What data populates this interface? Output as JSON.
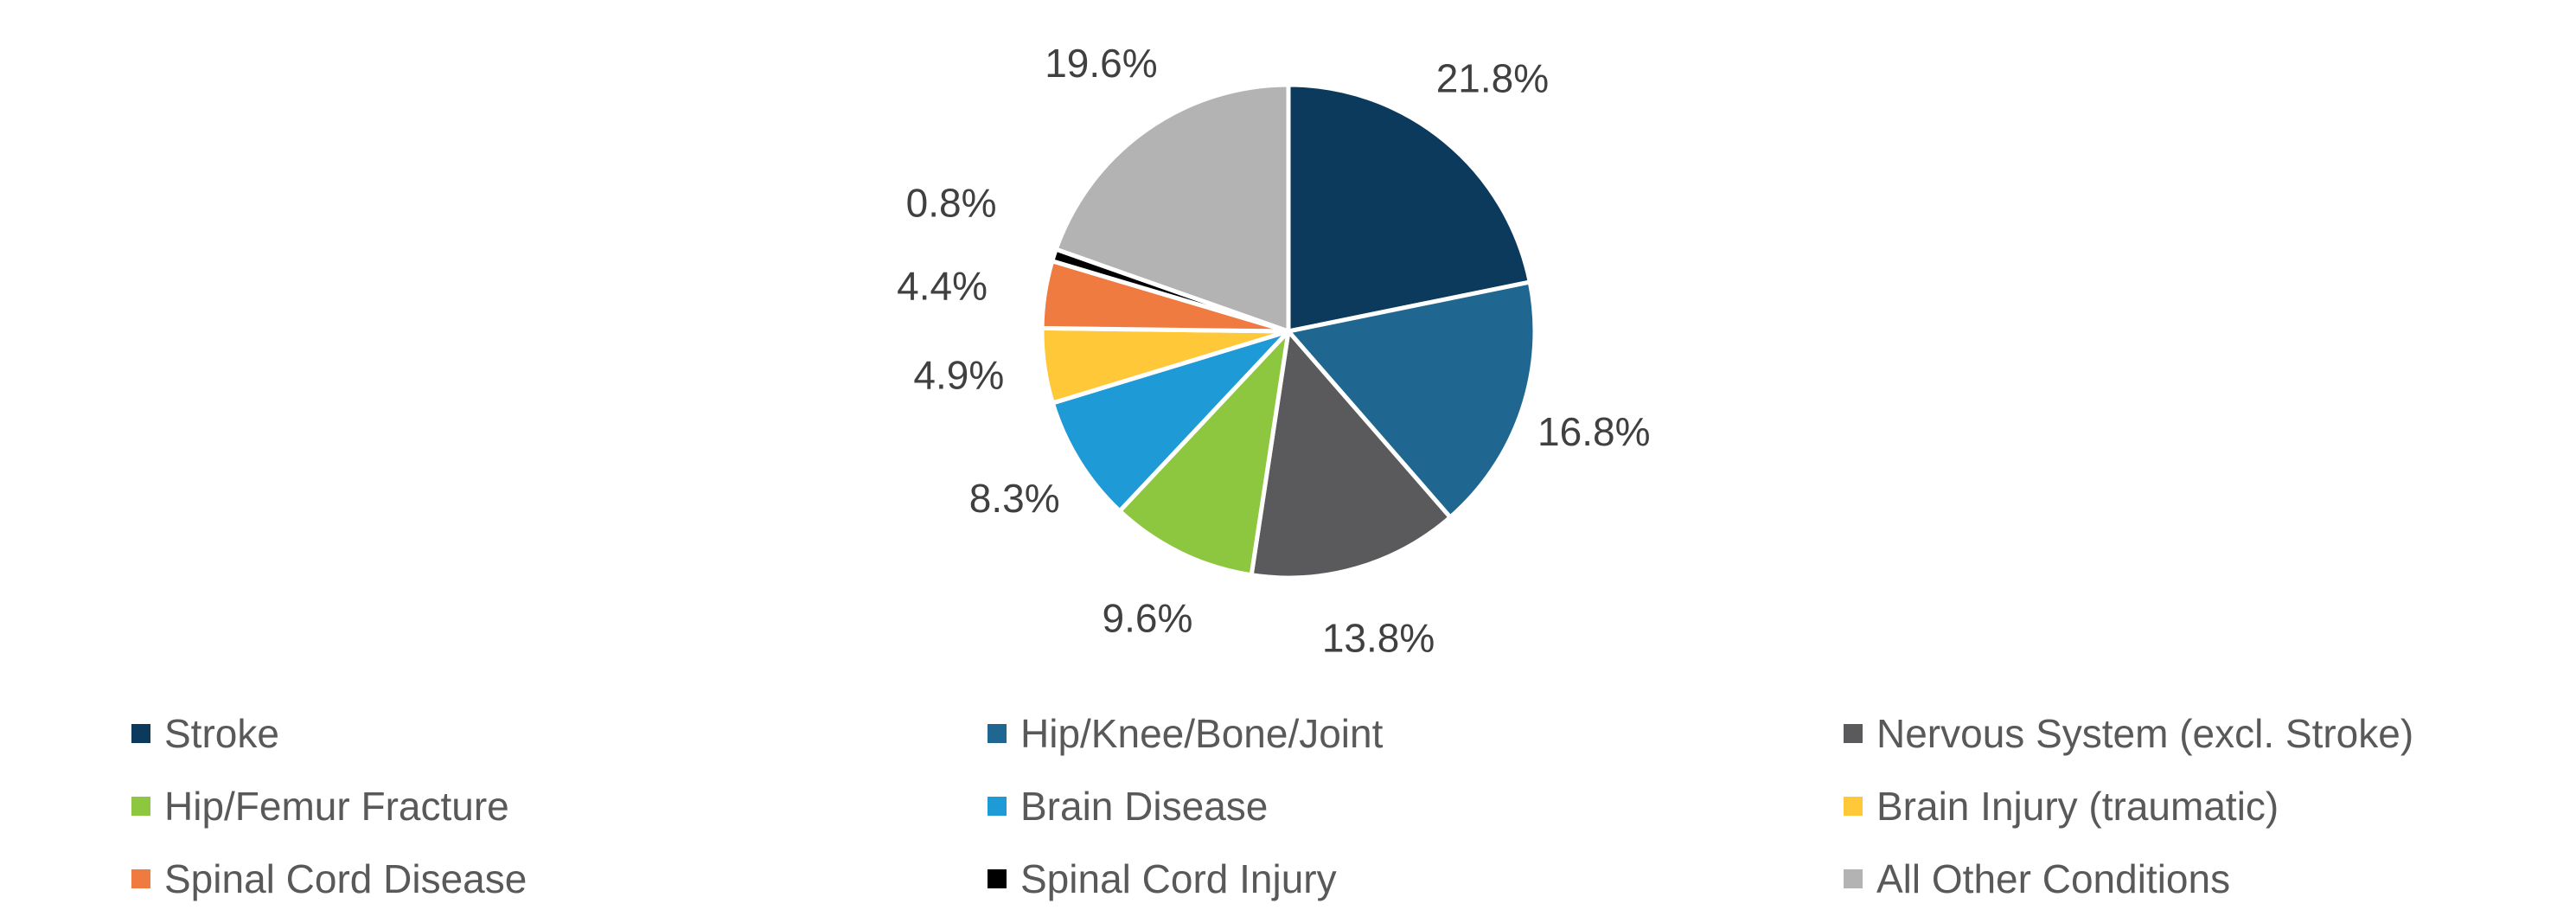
{
  "chart_data": {
    "type": "pie",
    "slices": [
      {
        "name": "Stroke",
        "value": 21.8,
        "label": "21.8%",
        "color": "#0b3a5c"
      },
      {
        "name": "Hip/Knee/Bone/Joint",
        "value": 16.8,
        "label": "16.8%",
        "color": "#1f6690"
      },
      {
        "name": "Nervous System (excl. Stroke)",
        "value": 13.8,
        "label": "13.8%",
        "color": "#5a5a5c"
      },
      {
        "name": "Hip/Femur Fracture",
        "value": 9.6,
        "label": "9.6%",
        "color": "#8dc63f"
      },
      {
        "name": "Brain Disease",
        "value": 8.3,
        "label": "8.3%",
        "color": "#1e9ad6"
      },
      {
        "name": "Brain Injury (traumatic)",
        "value": 4.9,
        "label": "4.9%",
        "color": "#ffc838"
      },
      {
        "name": "Spinal Cord Disease",
        "value": 4.4,
        "label": "4.4%",
        "color": "#f07b40"
      },
      {
        "name": "Spinal Cord Injury",
        "value": 0.8,
        "label": "0.8%",
        "color": "#000000"
      },
      {
        "name": "All Other Conditions",
        "value": 19.6,
        "label": "19.6%",
        "color": "#b3b3b3"
      }
    ],
    "start_angle": "12 o'clock",
    "direction": "clockwise",
    "legend_position": "bottom"
  }
}
